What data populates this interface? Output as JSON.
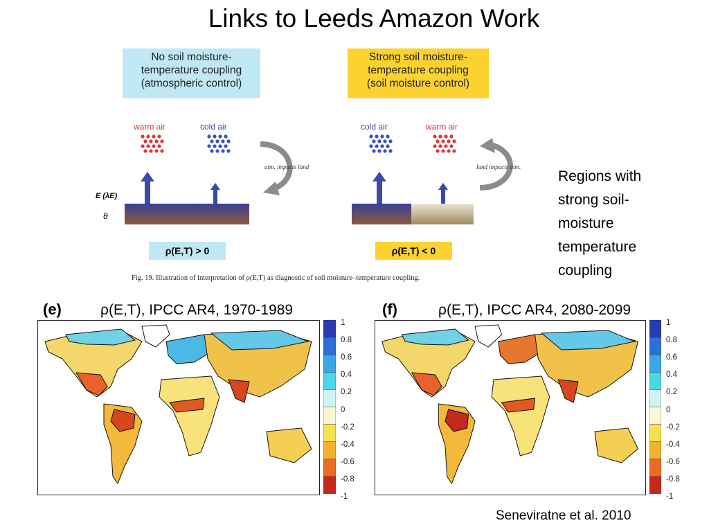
{
  "title": "Links to Leeds Amazon Work",
  "figure": {
    "left_box": "No soil moisture-\ntemperature coupling\n(atmospheric control)",
    "right_box": "Strong soil moisture-\ntemperature coupling\n(soil moisture control)",
    "warm_air": "warm air",
    "cold_air": "cold air",
    "atm_impacts_land": "atm. impacts land",
    "land_impacts_atm": "land impacts atm.",
    "e_label": "E (λE)",
    "theta_label": "θ",
    "rho_left": "ρ(E,T) > 0",
    "rho_right": "ρ(E,T) < 0",
    "caption": "Fig. 19. Illustration of interpretation of ρ(E,T) as diagnostic of soil moisture–temperature coupling."
  },
  "side_text": "Regions with strong soil-moisture temperature coupling",
  "panels": [
    {
      "letter": "(e)",
      "title": "ρ(E,T), IPCC AR4, 1970-1989"
    },
    {
      "letter": "(f)",
      "title": "ρ(E,T), IPCC AR4, 2080-2099"
    }
  ],
  "colorbar": {
    "ticks": [
      "1",
      "0.8",
      "0.6",
      "0.4",
      "0.2",
      "0",
      "-0.2",
      "-0.4",
      "-0.6",
      "-0.8",
      "-1"
    ],
    "colors": [
      "#2a3bb0",
      "#2c6fd8",
      "#3aa6e6",
      "#4cd6e6",
      "#cff3f5",
      "#fbf6d4",
      "#f6e24c",
      "#f4b030",
      "#eb6b22",
      "#c4281f"
    ]
  },
  "citation": "Seneviratne et al. 2010"
}
